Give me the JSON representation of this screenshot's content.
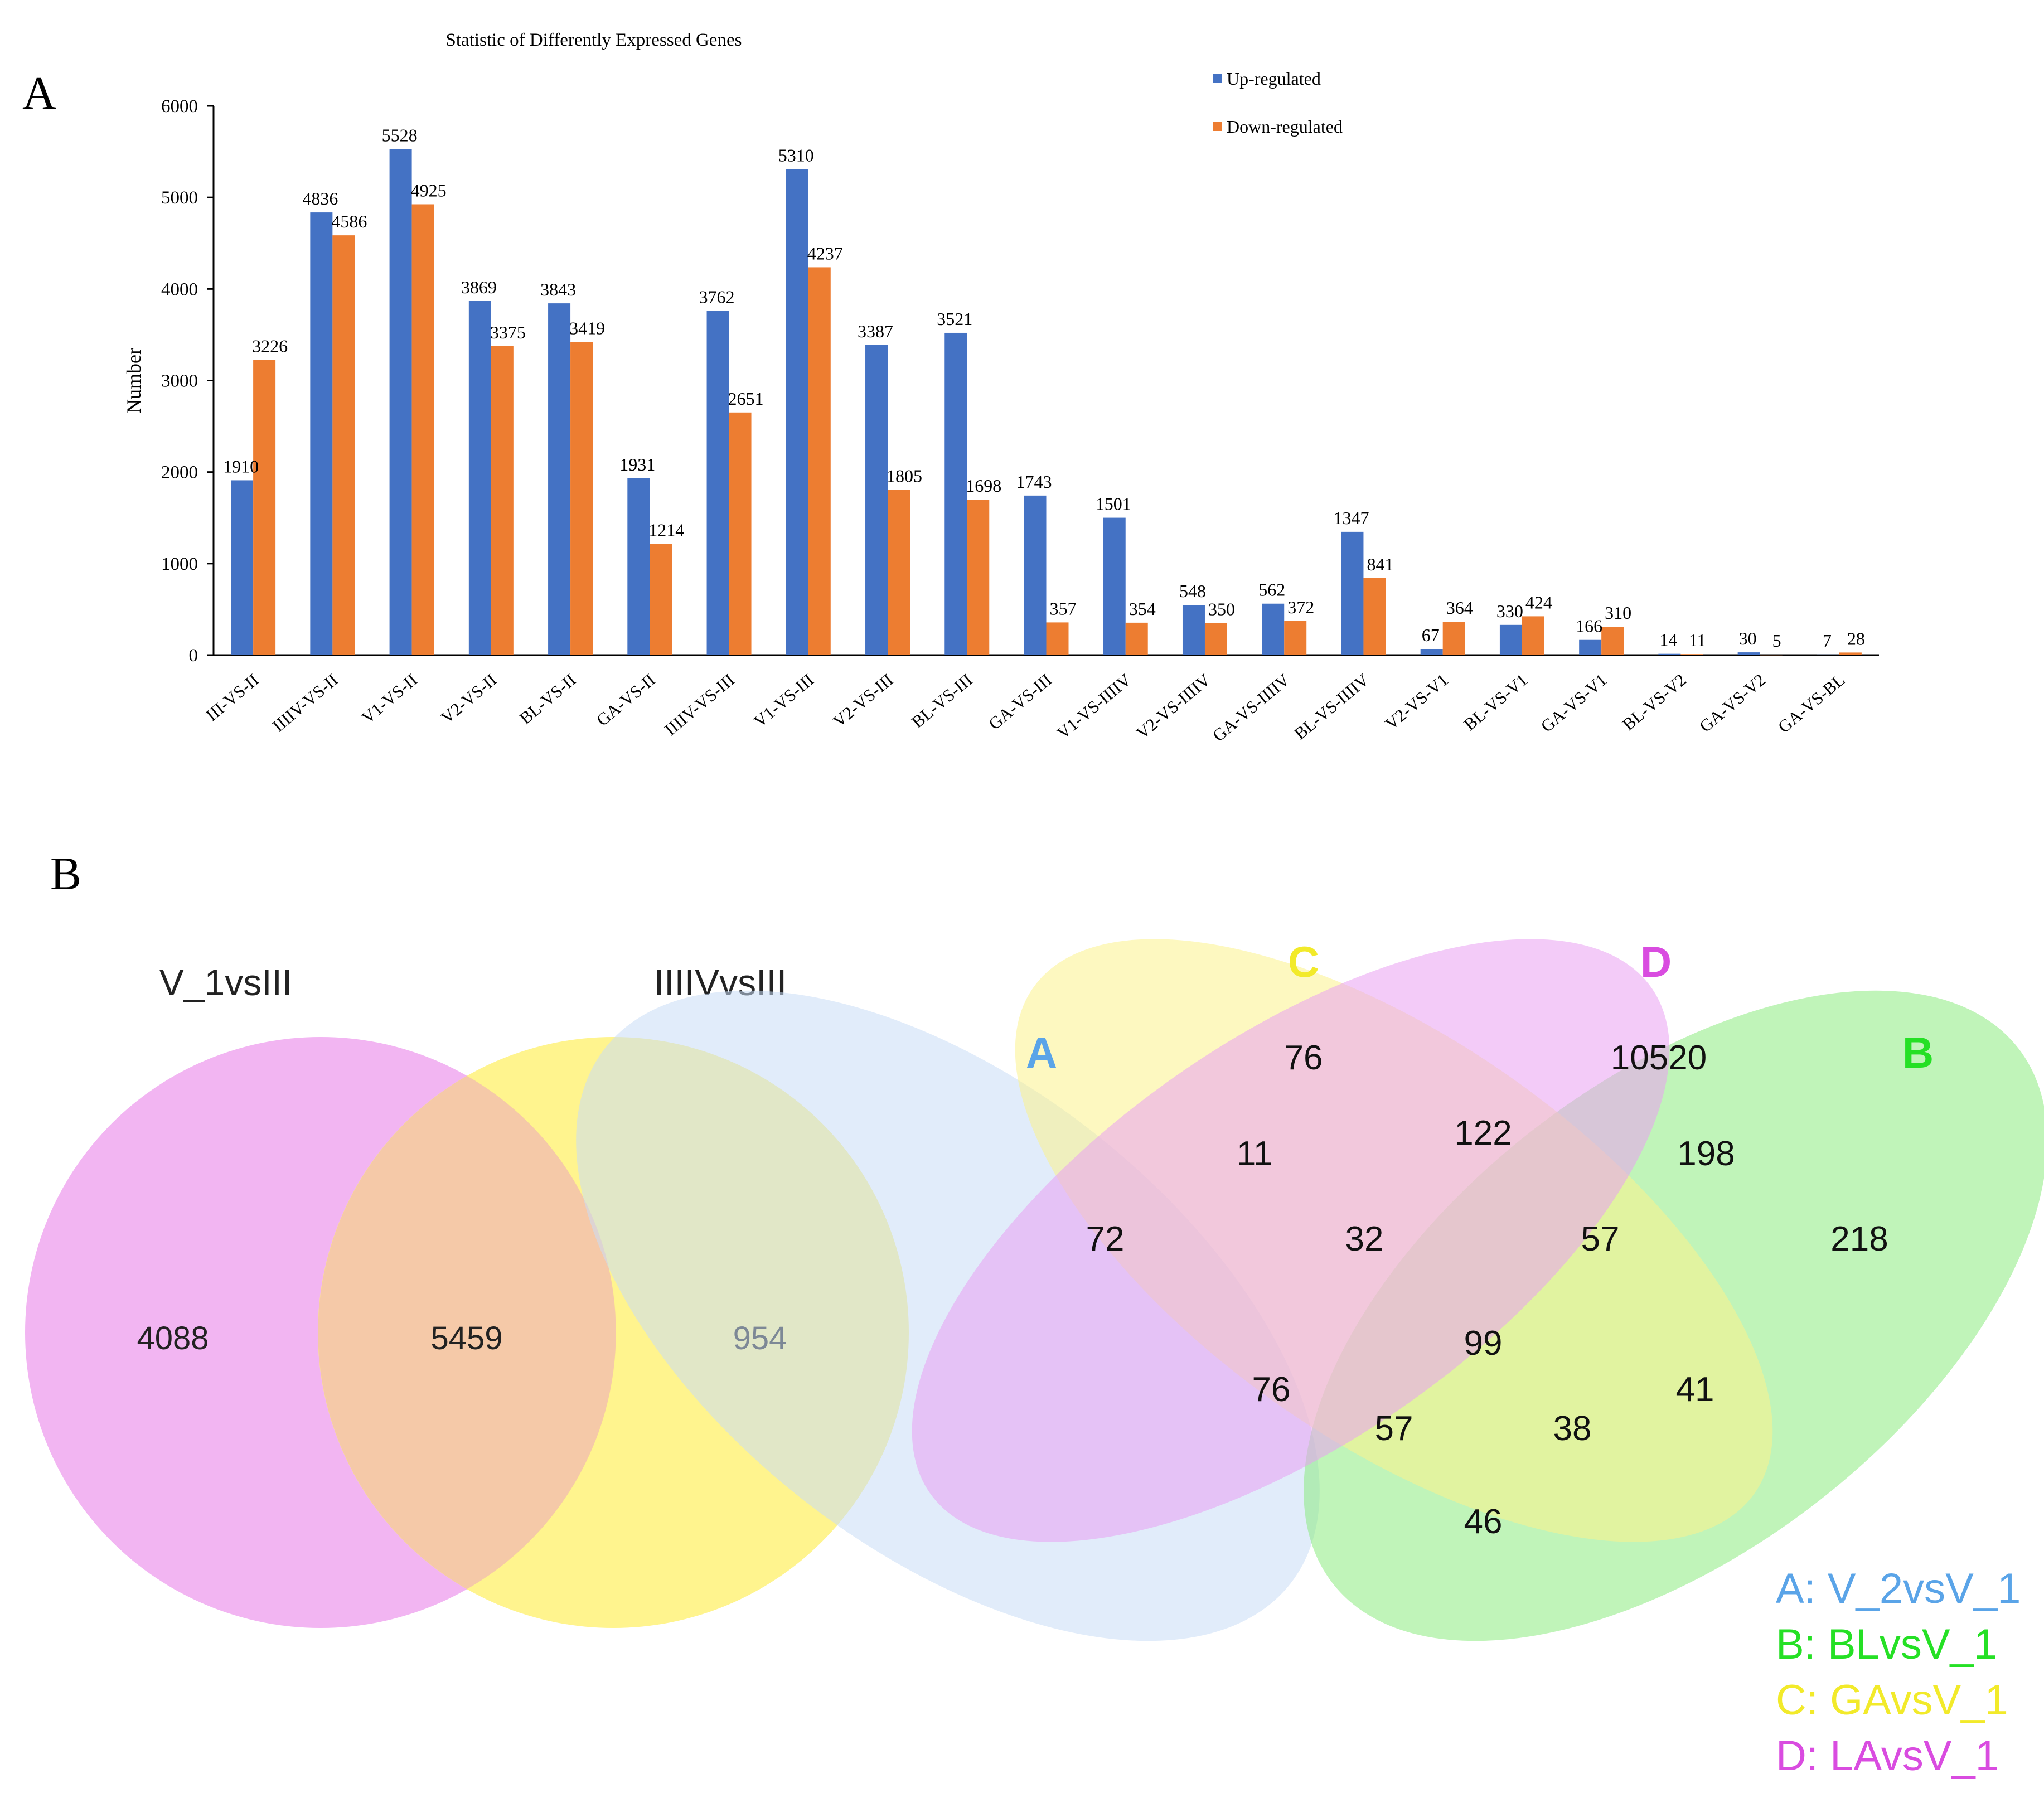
{
  "panel_labels": {
    "a": "A",
    "b": "B"
  },
  "colors": {
    "up": "#4472C4",
    "down": "#ED7D31",
    "venn2_left": "#F0A8F0",
    "venn2_right": "#FFF27A",
    "venn2_overlap": "#F5C9A8",
    "venn4_A": "#C9DDF5",
    "venn4_B": "#8CEB7F",
    "venn4_C": "#FBF28C",
    "venn4_D": "#E9A0F2",
    "label_A": "#5AA4E8",
    "label_B": "#25E025",
    "label_C": "#F2EA2A",
    "label_D": "#D94CE0"
  },
  "chart_data": [
    {
      "type": "bar",
      "title": "Statistic of Differently Expressed Genes",
      "xlabel": "",
      "ylabel": "Number",
      "ylim": [
        0,
        6000
      ],
      "yticks": [
        "0",
        "1000",
        "2000",
        "3000",
        "4000",
        "5000",
        "6000"
      ],
      "legend_position": "top-right",
      "categories": [
        "III-VS-II",
        "IIIIV-VS-II",
        "V1-VS-II",
        "V2-VS-II",
        "BL-VS-II",
        "GA-VS-II",
        "IIIIV-VS-III",
        "V1-VS-III",
        "V2-VS-III",
        "BL-VS-III",
        "GA-VS-III",
        "V1-VS-IIIIV",
        "V2-VS-IIIIV",
        "GA-VS-IIIIV",
        "BL-VS-IIIIV",
        "V2-VS-V1",
        "BL-VS-V1",
        "GA-VS-V1",
        "BL-VS-V2",
        "GA-VS-V2",
        "GA-VS-BL"
      ],
      "series": [
        {
          "name": "Up-regulated",
          "values": [
            1910,
            4836,
            5528,
            3869,
            3843,
            1931,
            3762,
            5310,
            3387,
            3521,
            1743,
            1501,
            548,
            562,
            1347,
            67,
            330,
            166,
            14,
            30,
            7
          ]
        },
        {
          "name": "Down-regulated",
          "values": [
            3226,
            4586,
            4925,
            3375,
            3419,
            1214,
            2651,
            4237,
            1805,
            1698,
            357,
            354,
            350,
            372,
            841,
            364,
            424,
            310,
            11,
            5,
            28
          ]
        }
      ]
    },
    {
      "type": "venn",
      "sets": [
        "V_1vsIII",
        "IIIIVvsIII"
      ],
      "regions": {
        "only_left": "4088",
        "both": "5459",
        "only_right": "954"
      }
    },
    {
      "type": "venn",
      "set_letters": [
        "A",
        "C",
        "D",
        "B"
      ],
      "legend": [
        "A: V_2vsV_1",
        "B: BLvsV_1",
        "C: GAvsV_1",
        "D: LAvsV_1"
      ],
      "regions": {
        "C": "76",
        "D": "10520",
        "A": "72",
        "B": "218",
        "AC": "11",
        "CD": "122",
        "BD": "198",
        "ACD": "32",
        "BCD": "57",
        "ABCD": "99",
        "AD": "76",
        "BC": "41",
        "ABD": "57",
        "ABC": "38",
        "AB": "46"
      }
    }
  ]
}
